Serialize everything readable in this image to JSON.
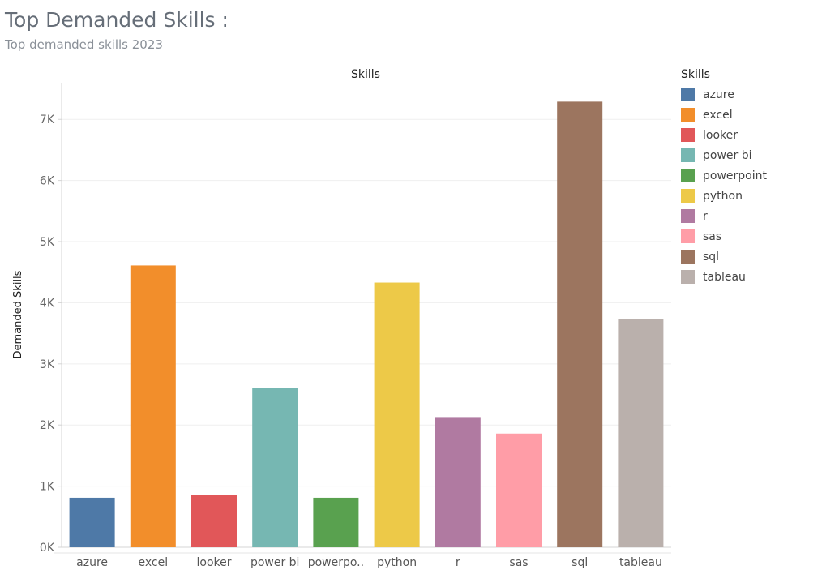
{
  "header": {
    "title": "Top Demanded Skills :",
    "subtitle": "Top demanded skills 2023"
  },
  "chart_data": {
    "type": "bar",
    "title": "Skills",
    "xlabel": "",
    "ylabel": "Demanded Skills",
    "ylim": [
      0,
      7600
    ],
    "yticks": [
      0,
      1000,
      2000,
      3000,
      4000,
      5000,
      6000,
      7000
    ],
    "ytick_labels": [
      "0K",
      "1K",
      "2K",
      "3K",
      "4K",
      "5K",
      "6K",
      "7K"
    ],
    "categories": [
      "azure",
      "excel",
      "looker",
      "power bi",
      "powerpoint",
      "python",
      "r",
      "sas",
      "sql",
      "tableau"
    ],
    "category_labels": [
      "azure",
      "excel",
      "looker",
      "power bi",
      "powerpo..",
      "python",
      "r",
      "sas",
      "sql",
      "tableau"
    ],
    "values": [
      810,
      4610,
      860,
      2600,
      810,
      4330,
      2130,
      1860,
      7290,
      3740
    ],
    "colors": [
      "#4e79a7",
      "#f28e2b",
      "#e15759",
      "#76b7b2",
      "#59a14f",
      "#edc948",
      "#b07aa1",
      "#ff9da7",
      "#9c755f",
      "#bab0ac"
    ],
    "grid": true,
    "legend_position": "right"
  },
  "legend": {
    "title": "Skills",
    "items": [
      {
        "label": "azure",
        "color": "#4e79a7"
      },
      {
        "label": "excel",
        "color": "#f28e2b"
      },
      {
        "label": "looker",
        "color": "#e15759"
      },
      {
        "label": "power bi",
        "color": "#76b7b2"
      },
      {
        "label": "powerpoint",
        "color": "#59a14f"
      },
      {
        "label": "python",
        "color": "#edc948"
      },
      {
        "label": "r",
        "color": "#b07aa1"
      },
      {
        "label": "sas",
        "color": "#ff9da7"
      },
      {
        "label": "sql",
        "color": "#9c755f"
      },
      {
        "label": "tableau",
        "color": "#bab0ac"
      }
    ]
  }
}
